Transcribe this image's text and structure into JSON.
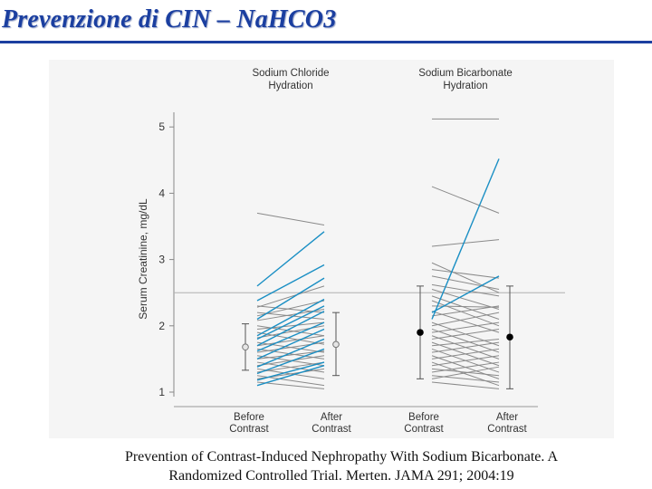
{
  "slide": {
    "title": "Prevenzione di CIN – Na​HCO3",
    "caption_line1": "Prevention of Contrast-Induced Nephropathy With Sodium Bicarbonate. A",
    "caption_line2": "Randomized Controlled Trial. Merten. JAMA 291; 2004:19"
  },
  "colors": {
    "title": "#1b3fa0",
    "gray_line": "#8a8a8a",
    "blue_line": "#1a8fc4",
    "threshold": "#b0b0b0"
  },
  "chart_data": {
    "type": "line",
    "ylabel": "Serum Creatinine, mg/dL",
    "ylim": [
      0.8,
      5.3
    ],
    "yticks": [
      1,
      2,
      3,
      4,
      5
    ],
    "threshold": 2.5,
    "groups": [
      {
        "name_line1": "Sodium Chloride",
        "name_line2": "Hydration",
        "before_label_line1": "Before",
        "before_label_line2": "Contrast",
        "after_label_line1": "After",
        "after_label_line2": "Contrast",
        "before_summary": {
          "mean": 1.68,
          "low": 1.33,
          "high": 2.03,
          "marker": "open"
        },
        "after_summary": {
          "mean": 1.72,
          "low": 1.25,
          "high": 2.2,
          "marker": "open"
        },
        "pairs": [
          [
            3.7,
            3.52,
            "gray"
          ],
          [
            2.28,
            2.6,
            "gray"
          ],
          [
            2.15,
            2.38,
            "gray"
          ],
          [
            2.3,
            2.2,
            "gray"
          ],
          [
            2.2,
            2.1,
            "gray"
          ],
          [
            2.08,
            2.25,
            "gray"
          ],
          [
            2.0,
            1.85,
            "gray"
          ],
          [
            1.95,
            2.05,
            "gray"
          ],
          [
            1.9,
            1.72,
            "gray"
          ],
          [
            1.82,
            2.0,
            "gray"
          ],
          [
            1.75,
            1.6,
            "gray"
          ],
          [
            1.7,
            1.85,
            "gray"
          ],
          [
            1.65,
            1.5,
            "gray"
          ],
          [
            1.6,
            1.75,
            "gray"
          ],
          [
            1.55,
            1.4,
            "gray"
          ],
          [
            1.5,
            1.62,
            "gray"
          ],
          [
            1.45,
            1.3,
            "gray"
          ],
          [
            1.4,
            1.55,
            "gray"
          ],
          [
            1.35,
            1.2,
            "gray"
          ],
          [
            1.3,
            1.45,
            "gray"
          ],
          [
            1.25,
            1.1,
            "gray"
          ],
          [
            1.2,
            1.35,
            "gray"
          ],
          [
            1.15,
            1.05,
            "gray"
          ],
          [
            2.6,
            3.42,
            "blue"
          ],
          [
            2.38,
            2.92,
            "blue"
          ],
          [
            2.1,
            2.72,
            "blue"
          ],
          [
            1.85,
            2.4,
            "blue"
          ],
          [
            1.8,
            2.3,
            "blue"
          ],
          [
            1.7,
            2.22,
            "blue"
          ],
          [
            1.62,
            2.05,
            "blue"
          ],
          [
            1.5,
            1.95,
            "blue"
          ],
          [
            1.38,
            1.8,
            "blue"
          ],
          [
            1.28,
            1.65,
            "blue"
          ],
          [
            1.18,
            1.45,
            "blue"
          ],
          [
            1.1,
            1.4,
            "blue"
          ]
        ]
      },
      {
        "name_line1": "Sodium Bicarbonate",
        "name_line2": "Hydration",
        "before_label_line1": "Before",
        "before_label_line2": "Contrast",
        "after_label_line1": "After",
        "after_label_line2": "Contrast",
        "before_summary": {
          "mean": 1.9,
          "low": 1.2,
          "high": 2.6,
          "marker": "filled"
        },
        "after_summary": {
          "mean": 1.83,
          "low": 1.05,
          "high": 2.6,
          "marker": "filled"
        },
        "pairs": [
          [
            5.12,
            5.12,
            "gray"
          ],
          [
            4.1,
            3.7,
            "gray"
          ],
          [
            3.2,
            3.3,
            "gray"
          ],
          [
            2.95,
            2.5,
            "gray"
          ],
          [
            2.85,
            2.72,
            "gray"
          ],
          [
            2.75,
            2.55,
            "gray"
          ],
          [
            2.62,
            2.45,
            "gray"
          ],
          [
            2.55,
            2.25,
            "gray"
          ],
          [
            2.45,
            2.1,
            "gray"
          ],
          [
            2.38,
            2.0,
            "gray"
          ],
          [
            2.3,
            2.28,
            "gray"
          ],
          [
            2.22,
            1.9,
            "gray"
          ],
          [
            2.15,
            2.3,
            "gray"
          ],
          [
            2.05,
            1.7,
            "gray"
          ],
          [
            2.0,
            2.2,
            "gray"
          ],
          [
            1.95,
            1.6,
            "gray"
          ],
          [
            1.9,
            2.05,
            "gray"
          ],
          [
            1.85,
            1.5,
            "gray"
          ],
          [
            1.8,
            1.95,
            "gray"
          ],
          [
            1.75,
            1.4,
            "gray"
          ],
          [
            1.7,
            1.8,
            "gray"
          ],
          [
            1.65,
            1.3,
            "gray"
          ],
          [
            1.6,
            1.75,
            "gray"
          ],
          [
            1.55,
            1.2,
            "gray"
          ],
          [
            1.5,
            1.65,
            "gray"
          ],
          [
            1.45,
            1.1,
            "gray"
          ],
          [
            1.4,
            1.55,
            "gray"
          ],
          [
            1.35,
            1.25,
            "gray"
          ],
          [
            1.3,
            1.45,
            "gray"
          ],
          [
            1.25,
            1.15,
            "gray"
          ],
          [
            1.2,
            1.38,
            "gray"
          ],
          [
            1.15,
            1.05,
            "gray"
          ],
          [
            2.1,
            4.52,
            "blue"
          ],
          [
            2.2,
            2.75,
            "blue"
          ]
        ]
      }
    ]
  }
}
